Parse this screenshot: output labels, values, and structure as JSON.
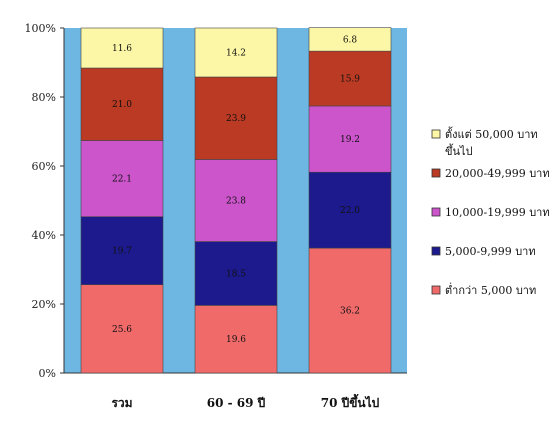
{
  "chart_data": {
    "type": "bar",
    "stacked": true,
    "percent_stacked": true,
    "categories": [
      "รวม",
      "60 - 69 ปี",
      "70 ปีขึ้นไป"
    ],
    "y_ticks": [
      "0%",
      "20%",
      "40%",
      "60%",
      "80%",
      "100%"
    ],
    "ylim": [
      0,
      100
    ],
    "series": [
      {
        "name": "ต่ำกว่า 5,000 บาท",
        "color": "#f06a6a",
        "values": [
          25.6,
          19.6,
          36.2
        ],
        "labels": [
          "25.6",
          "19.6",
          "36.2"
        ]
      },
      {
        "name": "5,000-9,999 บาท",
        "color": "#1c1a8c",
        "values": [
          19.7,
          18.5,
          22.0
        ],
        "labels": [
          "19.7",
          "18.5",
          "22.0"
        ]
      },
      {
        "name": "10,000-19,999 บาท",
        "color": "#cc55cc",
        "values": [
          22.1,
          23.8,
          19.2
        ],
        "labels": [
          "22.1",
          "23.8",
          "19.2"
        ]
      },
      {
        "name": "20,000-49,999 บาท",
        "color": "#bb3a24",
        "values": [
          21.0,
          23.9,
          15.9
        ],
        "labels": [
          "21.0",
          "23.9",
          "15.9"
        ]
      },
      {
        "name": "ตั้งแต่ 50,000 บาท ขึ้นไป",
        "color": "#fcf7a6",
        "values": [
          11.6,
          14.2,
          6.8
        ],
        "labels": [
          "11.6",
          "14.2",
          "6.8"
        ]
      }
    ],
    "legend": {
      "placement": "right",
      "entries": [
        {
          "lines": [
            "ตั้งแต่ 50,000 บาท",
            "ขึ้นไป"
          ],
          "color": "#fcf7a6"
        },
        {
          "lines": [
            "20,000-49,999 บาท"
          ],
          "color": "#bb3a24"
        },
        {
          "lines": [
            "10,000-19,999 บาท"
          ],
          "color": "#cc55cc"
        },
        {
          "lines": [
            "5,000-9,999 บาท"
          ],
          "color": "#1c1a8c"
        },
        {
          "lines": [
            "ต่ำกว่า 5,000 บาท"
          ],
          "color": "#f06a6a"
        }
      ]
    },
    "plot_background": "#6fb7e3",
    "grid": false
  }
}
